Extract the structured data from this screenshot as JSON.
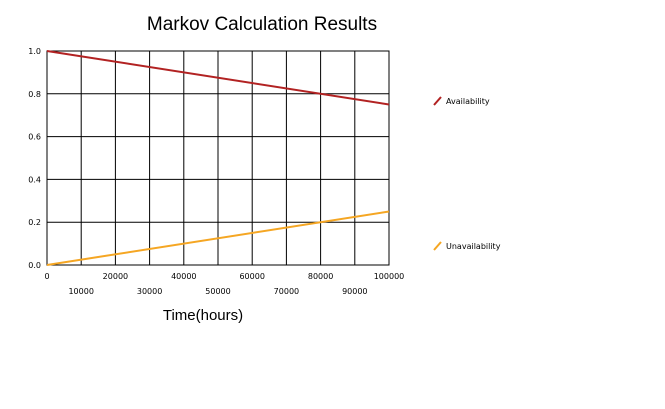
{
  "chart_data": {
    "type": "line",
    "title": "Markov Calculation Results",
    "xlabel": "Time(hours)",
    "ylabel": "",
    "xlim": [
      0,
      100000
    ],
    "ylim": [
      0,
      1.0
    ],
    "grid": true,
    "legend_position": "right",
    "x_ticks": [
      "0",
      "10000",
      "20000",
      "30000",
      "40000",
      "50000",
      "60000",
      "70000",
      "80000",
      "90000",
      "100000"
    ],
    "y_ticks": [
      "0.0",
      "0.2",
      "0.4",
      "0.6",
      "0.8",
      "1.0"
    ],
    "series": [
      {
        "name": "Availability",
        "color": "#b22222",
        "x": [
          0,
          100000
        ],
        "y": [
          1.0,
          0.75
        ]
      },
      {
        "name": "Unavailability",
        "color": "#f5a623",
        "x": [
          0,
          100000
        ],
        "y": [
          0.0,
          0.25
        ]
      }
    ]
  }
}
